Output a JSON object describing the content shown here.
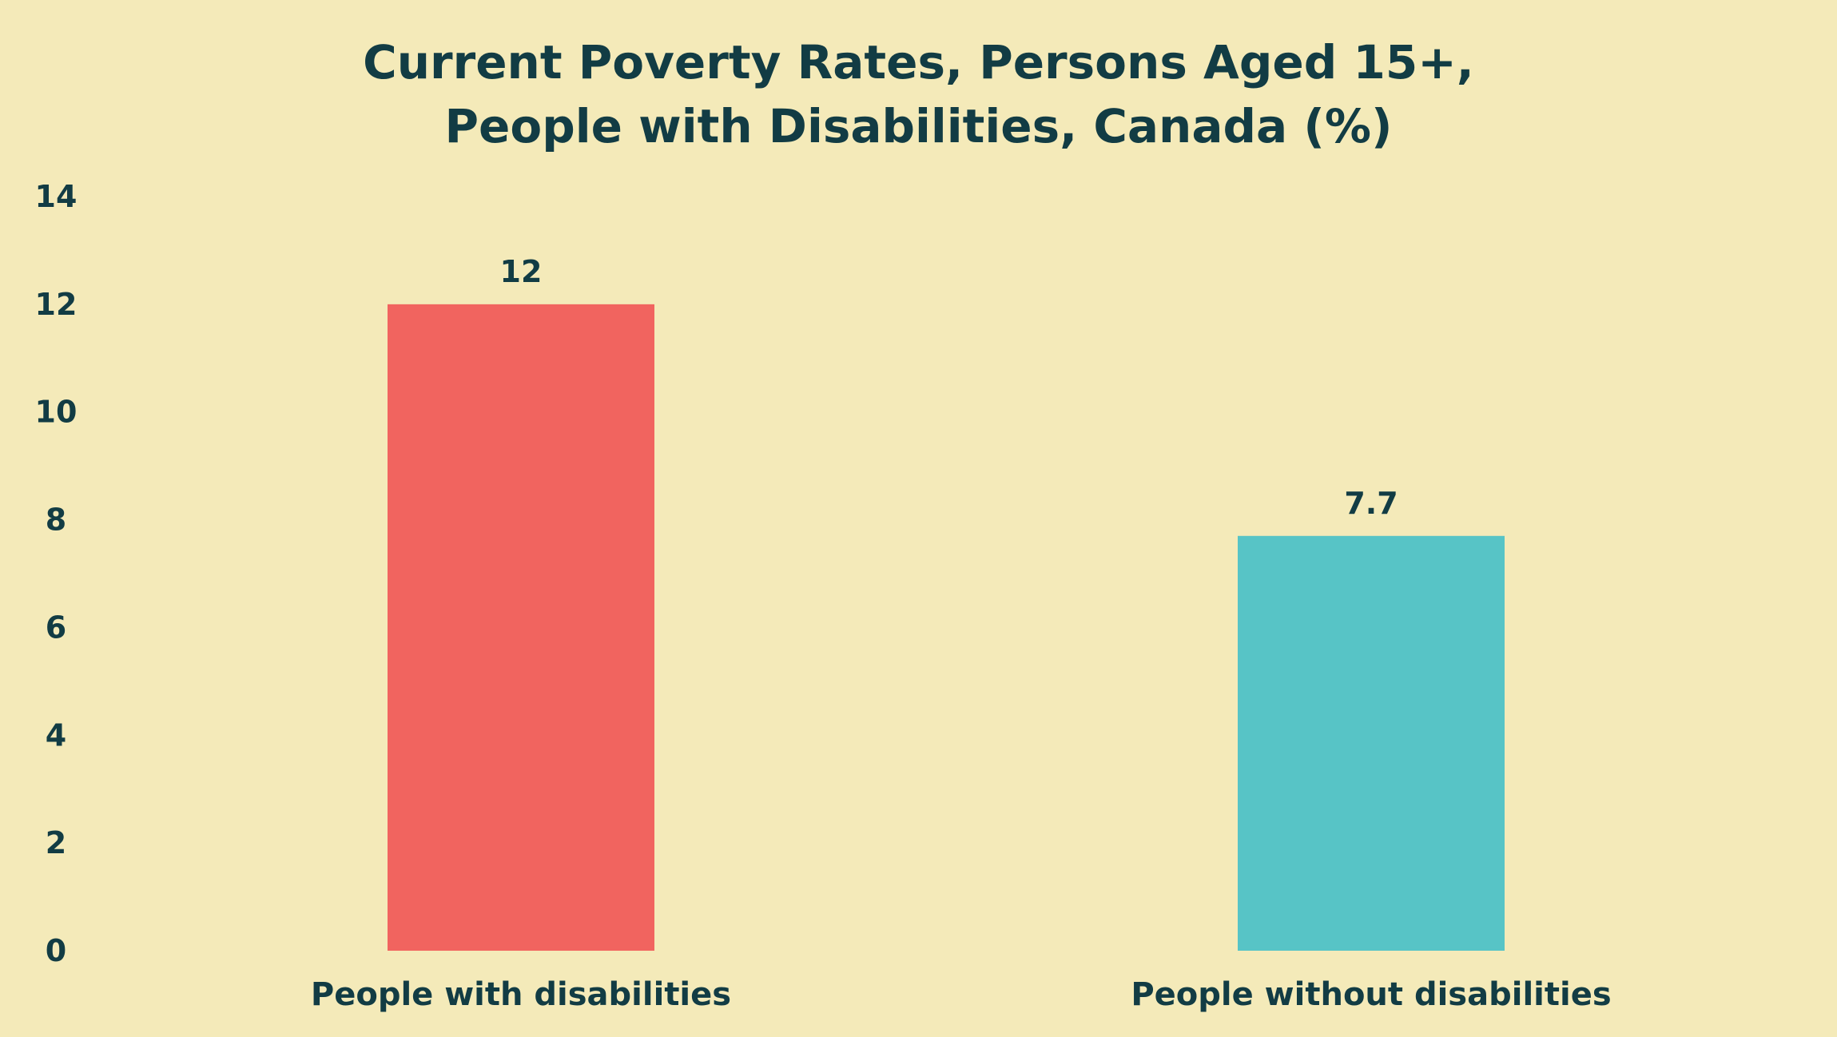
{
  "chart_data": {
    "type": "bar",
    "title_lines": [
      "Current Poverty Rates, Persons Aged 15+,",
      "People with Disabilities, Canada (%)"
    ],
    "categories": [
      "People with disabilities",
      "People without disabilities"
    ],
    "values": [
      12,
      7.7
    ],
    "value_labels": [
      "12",
      "7.7"
    ],
    "colors": [
      "#f1645f",
      "#57c4c6"
    ],
    "ylim": [
      0,
      14
    ],
    "yticks": [
      0,
      2,
      4,
      6,
      8,
      10,
      12,
      14
    ],
    "xlabel": "",
    "ylabel": "",
    "grid": false,
    "legend": "none"
  },
  "theme": {
    "background": "#f4eab9",
    "text_color": "#123c44"
  }
}
